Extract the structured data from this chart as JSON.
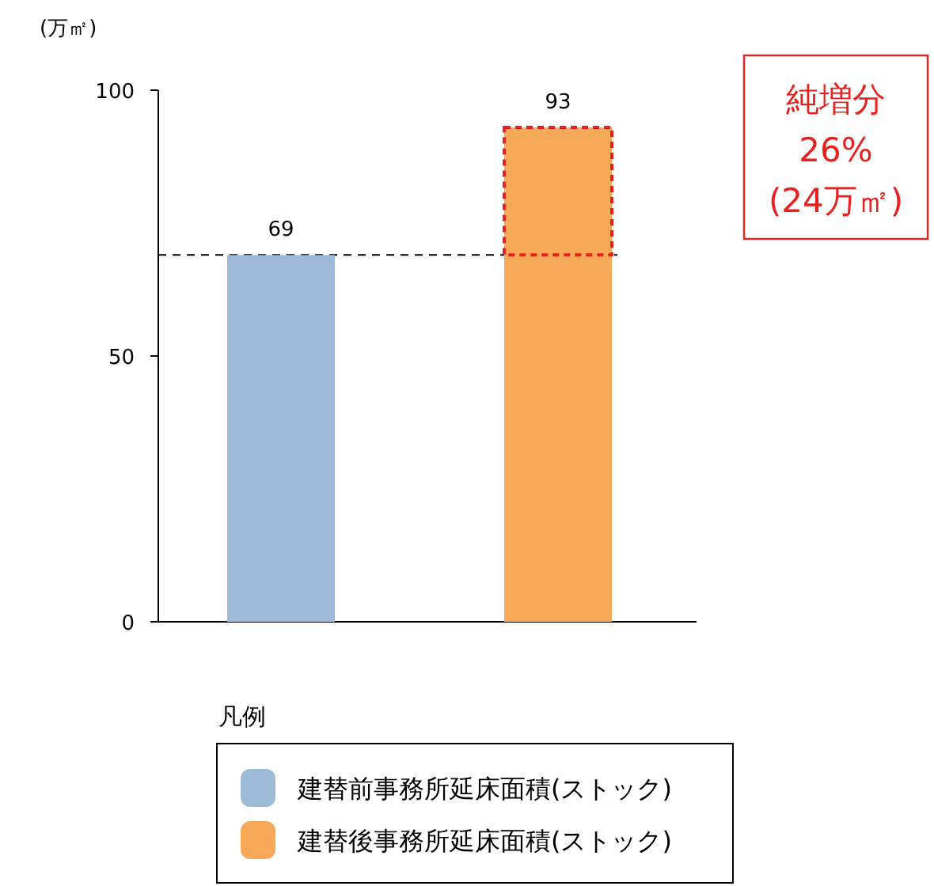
{
  "chart_data": {
    "type": "bar",
    "ylabel": "(万㎡)",
    "categories": [
      null,
      null
    ],
    "series": [
      {
        "name": "建替前事務所延床面積(ストック)",
        "color": "#9dbbd6",
        "values": [
          69,
          null
        ]
      },
      {
        "name": "建替後事務所延床面積(ストック)",
        "color": "#f7a95a",
        "values": [
          null,
          93
        ]
      }
    ],
    "ylim": [
      0,
      100
    ],
    "yticks": [
      0,
      50,
      100
    ],
    "data_labels": true,
    "legend": "bottom",
    "legend_title": "凡例",
    "ref_lines": [
      {
        "axis": "y",
        "value": 69,
        "color": "#000000",
        "line_style": "dashed"
      }
    ],
    "annotations": [
      "純増分",
      "26%",
      "(24万㎡)"
    ]
  }
}
